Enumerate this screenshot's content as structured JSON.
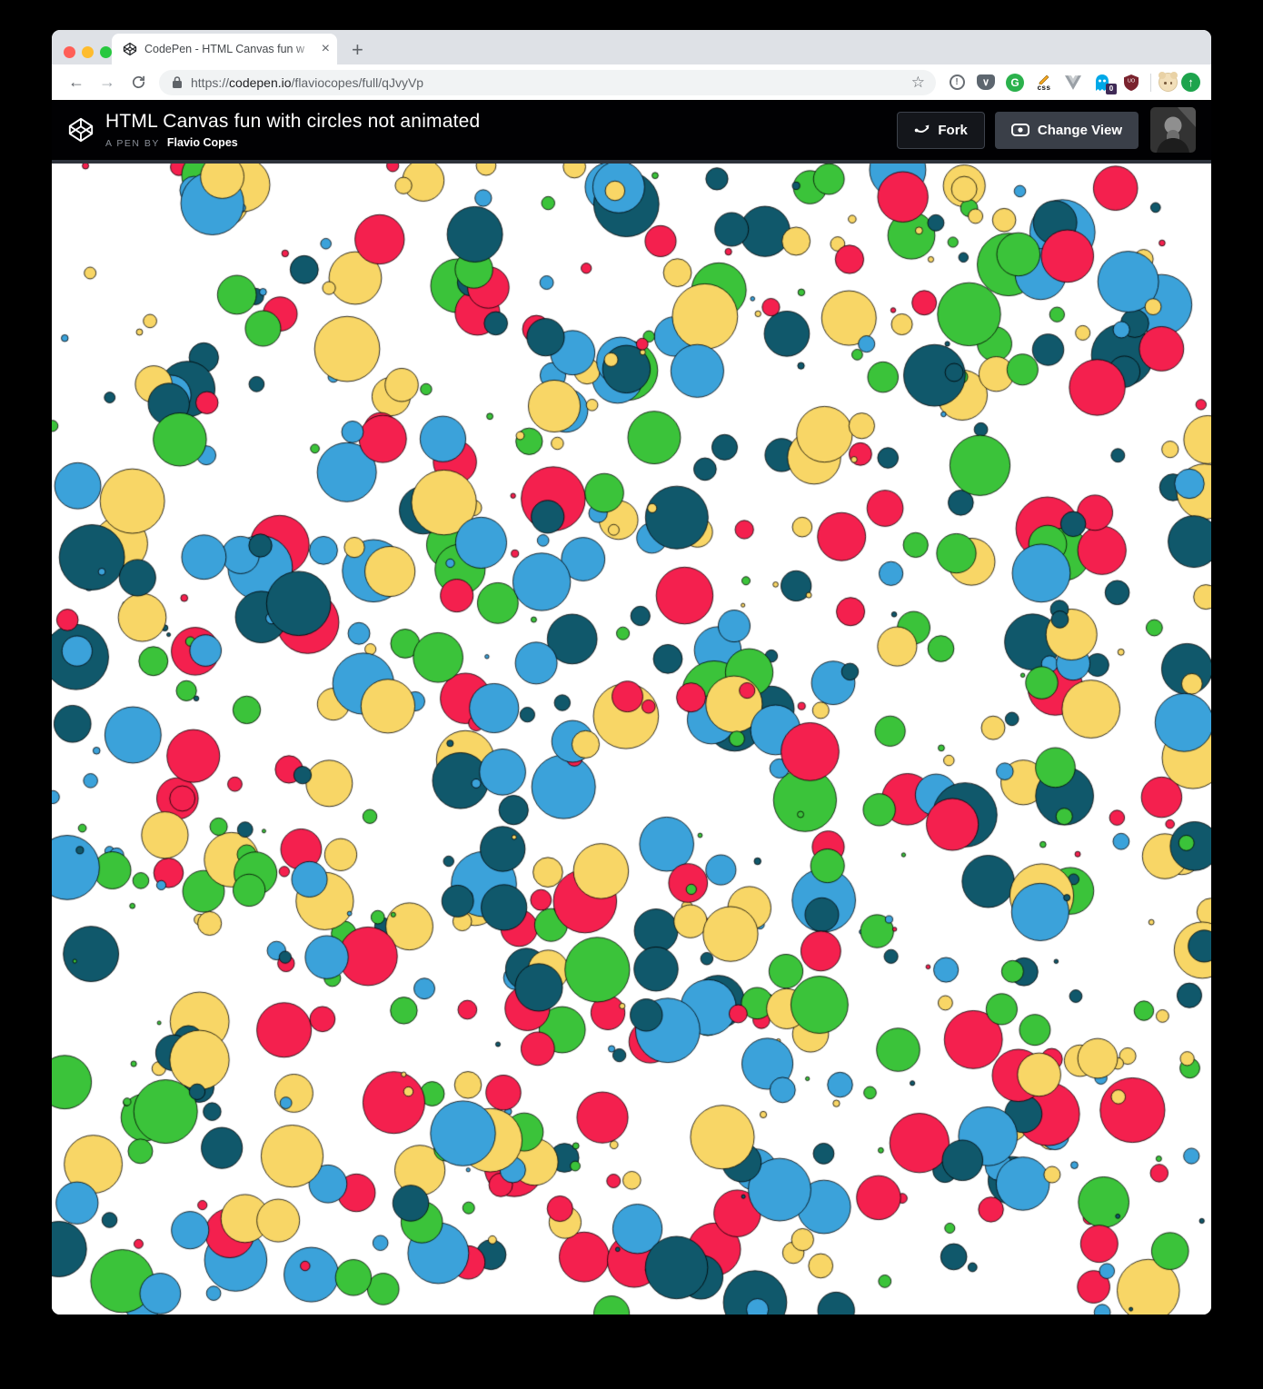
{
  "browser": {
    "tab_title": "CodePen - HTML Canvas fun w",
    "url": {
      "scheme": "https://",
      "domain": "codepen.io",
      "path": "/flaviocopes/full/qJvyVp"
    }
  },
  "glyphs": {
    "close_tab": "×",
    "new_tab": "+",
    "back_arrow": "←",
    "forward_arrow": "→",
    "star": "☆",
    "onepassword": "!",
    "pocket_chevron": "∨",
    "grammarly": "G",
    "css_badge": "css",
    "ublock": "UO",
    "ghostery_badge": "0",
    "update_arrow": "↑"
  },
  "colors": {
    "traffic_close": "#ff5f57",
    "traffic_minimize": "#febc2e",
    "traffic_zoom": "#28c840",
    "pocket_gray": "#5d666f",
    "grammarly_green": "#2bb14c",
    "ghostery_blue": "#00a8e8",
    "ghostery_badge_bg": "#3f2a56",
    "ublock_maroon": "#7a232e",
    "update_green": "#1ea44d",
    "header_bg": "#010103",
    "header_divider": "#2e333c"
  },
  "pen": {
    "title": "HTML Canvas fun with circles not animated",
    "byline_prefix": "A PEN BY",
    "author": "Flavio Copes",
    "fork_label": "Fork",
    "change_view_label": "Change View"
  },
  "canvas": {
    "background": "#ffffff",
    "stroke_color": "#000000",
    "palette": [
      "#f4204e",
      "#f8d666",
      "#3bc33a",
      "#3ba2da",
      "#10586b"
    ],
    "circle_count": 720,
    "min_radius": 2,
    "max_radius": 36,
    "size_bias": 1.35,
    "seed": 9
  }
}
